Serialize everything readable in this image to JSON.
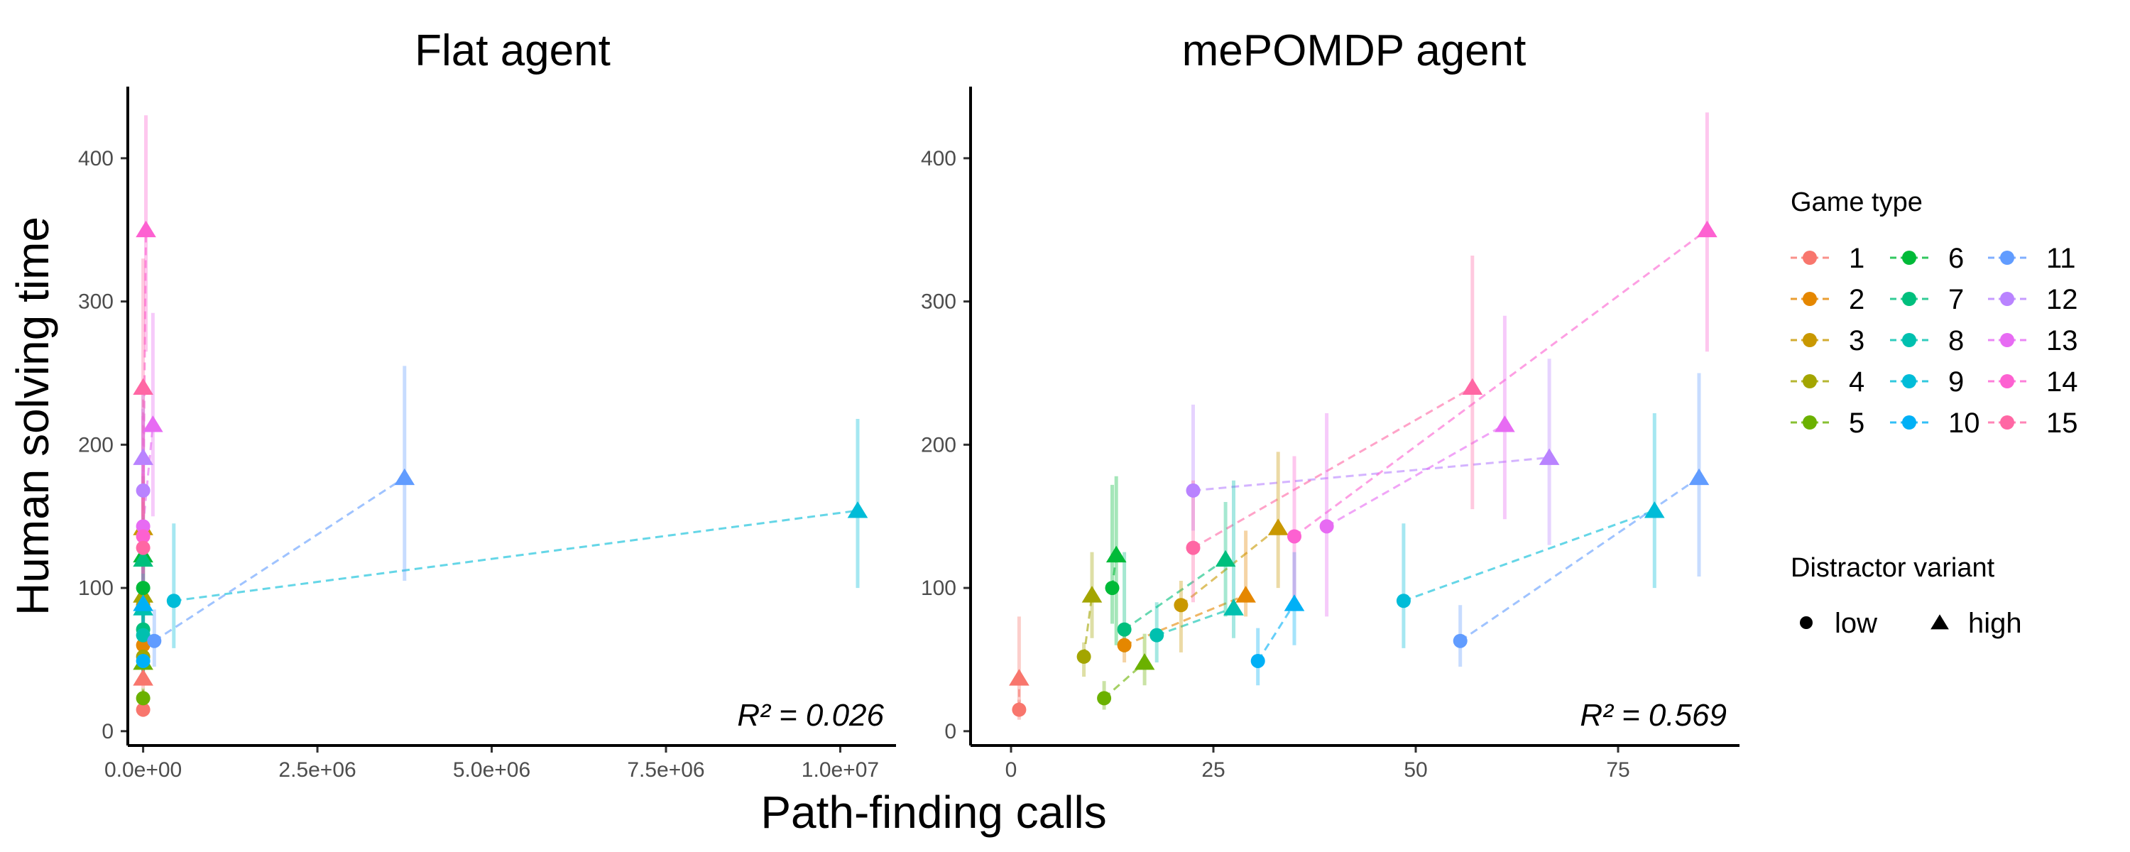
{
  "chart_data": [
    {
      "type": "scatter",
      "title": "Flat agent",
      "xlabel": "Path-finding calls",
      "ylabel": "Human solving time",
      "xlim": [
        -220000,
        10800000
      ],
      "ylim": [
        -10,
        450
      ],
      "x_ticks": [
        0,
        2500000,
        5000000,
        7500000,
        10000000
      ],
      "x_tick_labels": [
        "0.0e+00",
        "2.5e+06",
        "5.0e+06",
        "7.5e+06",
        "1.0e+07"
      ],
      "y_ticks": [
        0,
        100,
        200,
        300,
        400
      ],
      "y_tick_labels": [
        "0",
        "100",
        "200",
        "300",
        "400"
      ],
      "annotation": "R² = 0.026",
      "points": [
        {
          "game": 1,
          "variant": "low",
          "x": 0,
          "y": 15,
          "err": [
            10,
            20
          ]
        },
        {
          "game": 1,
          "variant": "high",
          "x": 0,
          "y": 37,
          "err": [
            30,
            80
          ]
        },
        {
          "game": 2,
          "variant": "low",
          "x": 0,
          "y": 60,
          "err": [
            50,
            70
          ]
        },
        {
          "game": 2,
          "variant": "high",
          "x": 0,
          "y": 95,
          "err": [
            80,
            130
          ]
        },
        {
          "game": 3,
          "variant": "low",
          "x": 0,
          "y": 88,
          "err": [
            70,
            105
          ]
        },
        {
          "game": 3,
          "variant": "high",
          "x": 0,
          "y": 142,
          "err": [
            120,
            175
          ]
        },
        {
          "game": 4,
          "variant": "low",
          "x": 0,
          "y": 52,
          "err": [
            42,
            62
          ]
        },
        {
          "game": 4,
          "variant": "high",
          "x": 0,
          "y": 95,
          "err": [
            75,
            120
          ]
        },
        {
          "game": 5,
          "variant": "low",
          "x": 0,
          "y": 23,
          "err": [
            18,
            30
          ]
        },
        {
          "game": 5,
          "variant": "high",
          "x": 0,
          "y": 48,
          "err": [
            35,
            60
          ]
        },
        {
          "game": 6,
          "variant": "low",
          "x": 0,
          "y": 100,
          "err": [
            85,
            120
          ]
        },
        {
          "game": 6,
          "variant": "high",
          "x": 0,
          "y": 123,
          "err": [
            90,
            178
          ]
        },
        {
          "game": 7,
          "variant": "low",
          "x": 0,
          "y": 71,
          "err": [
            58,
            85
          ]
        },
        {
          "game": 7,
          "variant": "high",
          "x": 0,
          "y": 120,
          "err": [
            95,
            145
          ]
        },
        {
          "game": 8,
          "variant": "low",
          "x": 0,
          "y": 67,
          "err": [
            50,
            90
          ]
        },
        {
          "game": 8,
          "variant": "high",
          "x": 0,
          "y": 86,
          "err": [
            70,
            110
          ]
        },
        {
          "game": 9,
          "variant": "low",
          "x": 440000,
          "y": 91,
          "err": [
            58,
            145
          ]
        },
        {
          "game": 9,
          "variant": "high",
          "x": 10250000,
          "y": 154,
          "err": [
            100,
            218
          ]
        },
        {
          "game": 10,
          "variant": "low",
          "x": 0,
          "y": 49,
          "err": [
            38,
            65
          ]
        },
        {
          "game": 10,
          "variant": "high",
          "x": 0,
          "y": 89,
          "err": [
            70,
            125
          ]
        },
        {
          "game": 11,
          "variant": "low",
          "x": 160000,
          "y": 63,
          "err": [
            45,
            85
          ]
        },
        {
          "game": 11,
          "variant": "high",
          "x": 3750000,
          "y": 177,
          "err": [
            105,
            255
          ]
        },
        {
          "game": 12,
          "variant": "low",
          "x": 0,
          "y": 168,
          "err": [
            140,
            225
          ]
        },
        {
          "game": 12,
          "variant": "high",
          "x": 0,
          "y": 191,
          "err": [
            160,
            240
          ]
        },
        {
          "game": 13,
          "variant": "low",
          "x": 0,
          "y": 143,
          "err": [
            85,
            220
          ]
        },
        {
          "game": 13,
          "variant": "high",
          "x": 140000,
          "y": 214,
          "err": [
            150,
            292
          ]
        },
        {
          "game": 14,
          "variant": "low",
          "x": 0,
          "y": 136,
          "err": [
            110,
            180
          ]
        },
        {
          "game": 14,
          "variant": "high",
          "x": 40000,
          "y": 350,
          "err": [
            265,
            430
          ]
        },
        {
          "game": 15,
          "variant": "low",
          "x": 0,
          "y": 128,
          "err": [
            100,
            165
          ]
        },
        {
          "game": 15,
          "variant": "high",
          "x": 0,
          "y": 240,
          "err": [
            150,
            330
          ]
        }
      ]
    },
    {
      "type": "scatter",
      "title": "mePOMDP agent",
      "xlabel": "Path-finding calls",
      "ylabel": "Human solving time",
      "xlim": [
        -5,
        90
      ],
      "ylim": [
        -10,
        450
      ],
      "x_ticks": [
        0,
        25,
        50,
        75
      ],
      "x_tick_labels": [
        "0",
        "25",
        "50",
        "75"
      ],
      "y_ticks": [
        0,
        100,
        200,
        300,
        400
      ],
      "y_tick_labels": [
        "0",
        "100",
        "200",
        "300",
        "400"
      ],
      "annotation": "R² = 0.569",
      "points": [
        {
          "game": 1,
          "variant": "low",
          "x": 1,
          "y": 15,
          "err": [
            8,
            22
          ]
        },
        {
          "game": 1,
          "variant": "high",
          "x": 1,
          "y": 37,
          "err": [
            20,
            80
          ]
        },
        {
          "game": 2,
          "variant": "low",
          "x": 14,
          "y": 60,
          "err": [
            48,
            72
          ]
        },
        {
          "game": 2,
          "variant": "high",
          "x": 29,
          "y": 95,
          "err": [
            80,
            140
          ]
        },
        {
          "game": 3,
          "variant": "low",
          "x": 21,
          "y": 88,
          "err": [
            55,
            105
          ]
        },
        {
          "game": 3,
          "variant": "high",
          "x": 33,
          "y": 142,
          "err": [
            100,
            195
          ]
        },
        {
          "game": 4,
          "variant": "low",
          "x": 9,
          "y": 52,
          "err": [
            38,
            62
          ]
        },
        {
          "game": 4,
          "variant": "high",
          "x": 10,
          "y": 95,
          "err": [
            65,
            125
          ]
        },
        {
          "game": 5,
          "variant": "low",
          "x": 11.5,
          "y": 23,
          "err": [
            15,
            35
          ]
        },
        {
          "game": 5,
          "variant": "high",
          "x": 16.5,
          "y": 48,
          "err": [
            32,
            68
          ]
        },
        {
          "game": 6,
          "variant": "low",
          "x": 12.5,
          "y": 100,
          "err": [
            75,
            172
          ]
        },
        {
          "game": 6,
          "variant": "high",
          "x": 13,
          "y": 123,
          "err": [
            60,
            178
          ]
        },
        {
          "game": 7,
          "variant": "low",
          "x": 14,
          "y": 71,
          "err": [
            55,
            125
          ]
        },
        {
          "game": 7,
          "variant": "high",
          "x": 26.5,
          "y": 120,
          "err": [
            80,
            160
          ]
        },
        {
          "game": 8,
          "variant": "low",
          "x": 18,
          "y": 67,
          "err": [
            48,
            90
          ]
        },
        {
          "game": 8,
          "variant": "high",
          "x": 27.5,
          "y": 86,
          "err": [
            65,
            175
          ]
        },
        {
          "game": 9,
          "variant": "low",
          "x": 48.5,
          "y": 91,
          "err": [
            58,
            145
          ]
        },
        {
          "game": 9,
          "variant": "high",
          "x": 79.5,
          "y": 154,
          "err": [
            100,
            222
          ]
        },
        {
          "game": 10,
          "variant": "low",
          "x": 30.5,
          "y": 49,
          "err": [
            32,
            72
          ]
        },
        {
          "game": 10,
          "variant": "high",
          "x": 35,
          "y": 89,
          "err": [
            60,
            125
          ]
        },
        {
          "game": 11,
          "variant": "low",
          "x": 55.5,
          "y": 63,
          "err": [
            45,
            88
          ]
        },
        {
          "game": 11,
          "variant": "high",
          "x": 85,
          "y": 177,
          "err": [
            108,
            250
          ]
        },
        {
          "game": 12,
          "variant": "low",
          "x": 22.5,
          "y": 168,
          "err": [
            140,
            228
          ]
        },
        {
          "game": 12,
          "variant": "high",
          "x": 66.5,
          "y": 191,
          "err": [
            130,
            260
          ]
        },
        {
          "game": 13,
          "variant": "low",
          "x": 39,
          "y": 143,
          "err": [
            80,
            222
          ]
        },
        {
          "game": 13,
          "variant": "high",
          "x": 61,
          "y": 214,
          "err": [
            148,
            290
          ]
        },
        {
          "game": 14,
          "variant": "low",
          "x": 35,
          "y": 136,
          "err": [
            88,
            192
          ]
        },
        {
          "game": 14,
          "variant": "high",
          "x": 86,
          "y": 350,
          "err": [
            265,
            432
          ]
        },
        {
          "game": 15,
          "variant": "low",
          "x": 22.5,
          "y": 128,
          "err": [
            90,
            175
          ]
        },
        {
          "game": 15,
          "variant": "high",
          "x": 57,
          "y": 240,
          "err": [
            155,
            332
          ]
        }
      ]
    }
  ],
  "shared": {
    "xlabel": "Path-finding calls",
    "ylabel": "Human solving time"
  },
  "legend": {
    "game_title": "Game type",
    "games": [
      {
        "label": "1",
        "color": "#F8766D"
      },
      {
        "label": "2",
        "color": "#E58700"
      },
      {
        "label": "3",
        "color": "#C99800"
      },
      {
        "label": "4",
        "color": "#A3A500"
      },
      {
        "label": "5",
        "color": "#6BB100"
      },
      {
        "label": "6",
        "color": "#00BA38"
      },
      {
        "label": "7",
        "color": "#00BF7D"
      },
      {
        "label": "8",
        "color": "#00C0AF"
      },
      {
        "label": "9",
        "color": "#00BCD8"
      },
      {
        "label": "10",
        "color": "#00B0F6"
      },
      {
        "label": "11",
        "color": "#619CFF"
      },
      {
        "label": "12",
        "color": "#B983FF"
      },
      {
        "label": "13",
        "color": "#E76BF3"
      },
      {
        "label": "14",
        "color": "#FD61D1"
      },
      {
        "label": "15",
        "color": "#FF67A4"
      }
    ],
    "variant_title": "Distractor variant",
    "variants": [
      {
        "label": "low",
        "shape": "circle"
      },
      {
        "label": "high",
        "shape": "triangle"
      }
    ]
  }
}
